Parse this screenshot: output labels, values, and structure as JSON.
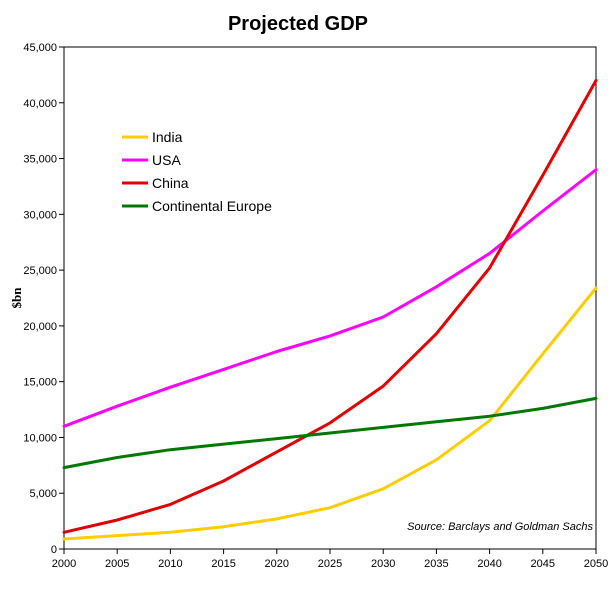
{
  "chart_data": {
    "type": "line",
    "title": "Projected GDP",
    "xlabel": "",
    "ylabel": "$bn",
    "xlim": [
      2000,
      2050
    ],
    "ylim": [
      0,
      45000
    ],
    "x_ticks": [
      "2000",
      "2005",
      "2010",
      "2015",
      "2020",
      "2025",
      "2030",
      "2035",
      "2040",
      "2045",
      "2050"
    ],
    "y_ticks": [
      "0",
      "5,000",
      "10,000",
      "15,000",
      "20,000",
      "25,000",
      "30,000",
      "35,000",
      "40,000",
      "45,000"
    ],
    "grid": false,
    "legend_position": "top-left",
    "annotation": "Source: Barclays and Goldman Sachs",
    "x": [
      2000,
      2005,
      2010,
      2015,
      2020,
      2025,
      2030,
      2035,
      2040,
      2045,
      2050
    ],
    "series": [
      {
        "name": "India",
        "color": "#ffcc00",
        "values": [
          900,
          1200,
          1500,
          2000,
          2700,
          3700,
          5400,
          8000,
          11500,
          17500,
          23400
        ]
      },
      {
        "name": "USA",
        "color": "#ff00ff",
        "values": [
          11000,
          12800,
          14500,
          16100,
          17700,
          19100,
          20800,
          23500,
          26500,
          30300,
          34000
        ]
      },
      {
        "name": "China",
        "color": "#e00000",
        "values": [
          1500,
          2600,
          4000,
          6100,
          8700,
          11300,
          14600,
          19300,
          25200,
          33500,
          42000
        ]
      },
      {
        "name": "Continental Europe",
        "color": "#007700",
        "values": [
          7300,
          8200,
          8900,
          9400,
          9900,
          10400,
          10900,
          11400,
          11900,
          12600,
          13500
        ]
      }
    ]
  }
}
